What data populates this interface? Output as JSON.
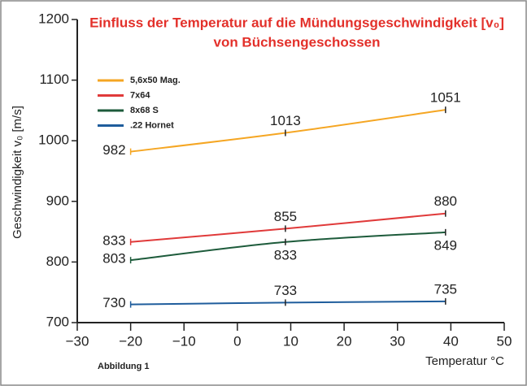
{
  "chart_data": {
    "type": "line",
    "title": [
      "Einfluss der Temperatur auf die Mündungsgeschwindigkeit [v₀]",
      "von Büchsengeschossen"
    ],
    "ylabel": "Geschwindigkeit v₀ [m/s]",
    "xlabel": "Temperatur °C",
    "footnote": "Abbildung 1",
    "x": [
      -20,
      9,
      39
    ],
    "series": [
      {
        "name": "5,6x50 Mag.",
        "color": "#f5a623",
        "values": [
          982,
          1013,
          1051
        ]
      },
      {
        "name": "7x64",
        "color": "#e03a3a",
        "values": [
          833,
          855,
          880
        ]
      },
      {
        "name": "8x68 S",
        "color": "#1d5b3b",
        "values": [
          803,
          833,
          849
        ]
      },
      {
        "name": ".22 Hornet",
        "color": "#1f5d9c",
        "values": [
          730,
          733,
          735
        ]
      }
    ],
    "xlim": [
      -30,
      50
    ],
    "xticks": [
      {
        "value": -30,
        "label": "−30"
      },
      {
        "value": -20,
        "label": "−20"
      },
      {
        "value": -10,
        "label": "−10"
      },
      0,
      10,
      20,
      30,
      40,
      50
    ],
    "ylim": [
      700,
      1200
    ],
    "yticks": [
      700,
      800,
      900,
      1000,
      1100,
      1200
    ],
    "legend": "upper left"
  }
}
